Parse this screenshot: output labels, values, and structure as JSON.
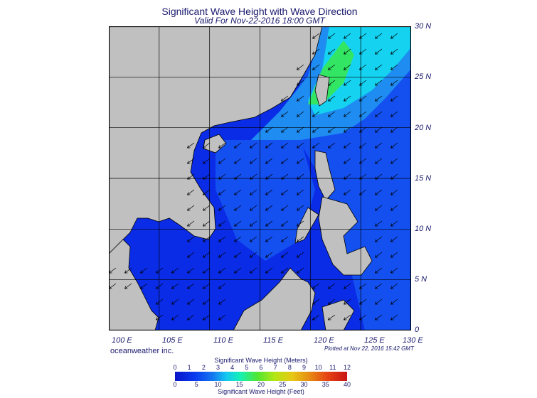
{
  "header": {
    "title": "Significant Wave Height with Wave Direction",
    "subtitle": "Valid For Nov-22-2016 18:00 GMT"
  },
  "map": {
    "lat_labels": [
      "30 N",
      "25 N",
      "20 N",
      "15 N",
      "10 N",
      "5 N",
      "0"
    ],
    "lon_labels": [
      "100 E",
      "105 E",
      "110 E",
      "115 E",
      "120 E",
      "125 E",
      "130 E"
    ],
    "lon_range": [
      100,
      130
    ],
    "lat_range": [
      0,
      30
    ],
    "colors": {
      "land": "#c0c0c0",
      "deep_blue": "#0a2ce6",
      "mid_blue": "#1450f0",
      "light_blue": "#1e8cf0",
      "cyan": "#14d2f0",
      "green": "#32e664",
      "arrow": "#000000"
    },
    "wave_direction": "from north-east"
  },
  "footer": {
    "credit": "oceanweather inc.",
    "plotted": "Plotted at Nov 22, 2016 15:42 GMT"
  },
  "colorbar": {
    "title_top": "Significant Wave Height (Meters)",
    "title_bottom": "Significant Wave Height (Feet)",
    "meter_ticks": [
      "0",
      "1",
      "2",
      "3",
      "4",
      "5",
      "6",
      "7",
      "8",
      "9",
      "10",
      "11",
      "12"
    ],
    "feet_ticks": [
      "0",
      "5",
      "10",
      "15",
      "20",
      "25",
      "30",
      "35",
      "40"
    ]
  }
}
